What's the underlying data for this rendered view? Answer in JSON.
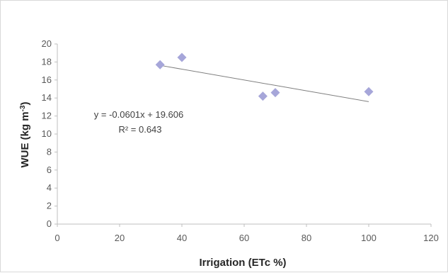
{
  "chart_data": {
    "type": "scatter",
    "xlabel": "Irrigation (ETc %)",
    "ylabel_main": "WUE (kg m",
    "ylabel_sup": "-3",
    "ylabel_end": ")",
    "xlim": [
      0,
      120
    ],
    "ylim": [
      0,
      20
    ],
    "xticks": [
      0,
      20,
      40,
      60,
      80,
      100,
      120
    ],
    "yticks": [
      0,
      2,
      4,
      6,
      8,
      10,
      12,
      14,
      16,
      18,
      20
    ],
    "grid": false,
    "legend": "none",
    "series": [
      {
        "marker": "diamond",
        "color": "#a6a6d9",
        "points": [
          {
            "x": 33,
            "y": 17.7
          },
          {
            "x": 40,
            "y": 18.5
          },
          {
            "x": 66,
            "y": 14.2
          },
          {
            "x": 70,
            "y": 14.6
          },
          {
            "x": 100,
            "y": 14.7
          }
        ]
      }
    ],
    "trendline": {
      "type": "linear",
      "slope": -0.0601,
      "intercept": 19.606,
      "x_range": [
        33,
        100
      ],
      "color": "#7f7f7f"
    },
    "annotations": {
      "equation": "y = -0.0601x + 19.606",
      "r2_label": "R² = 0.643"
    }
  }
}
